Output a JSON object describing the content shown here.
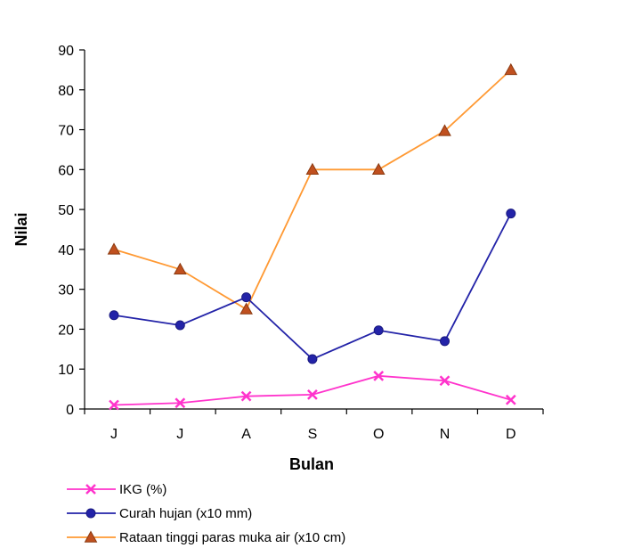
{
  "chart_data": {
    "type": "line",
    "title": "",
    "xlabel": "Bulan",
    "ylabel": "Nilai",
    "categories": [
      "J",
      "J",
      "A",
      "S",
      "O",
      "N",
      "D"
    ],
    "ylim": [
      0,
      90
    ],
    "yticks": [
      0,
      10,
      20,
      30,
      40,
      50,
      60,
      70,
      80,
      90
    ],
    "grid": false,
    "legend_position": "bottom-left",
    "series": [
      {
        "name": "IKG (%)",
        "color": "#FF33CC",
        "marker": "x",
        "values": [
          1,
          1.5,
          3.2,
          3.6,
          8.3,
          7.1,
          2.3
        ]
      },
      {
        "name": "Curah hujan (x10 mm)",
        "color": "#2323A8",
        "marker": "circle",
        "values": [
          23.5,
          21,
          28,
          12.5,
          19.7,
          17,
          49
        ]
      },
      {
        "name": "Rataan tinggi paras muka air (x10 cm)",
        "color": "#FF9933",
        "marker": "triangle",
        "values": [
          40,
          35,
          25,
          60,
          60,
          69.7,
          85
        ]
      }
    ]
  }
}
